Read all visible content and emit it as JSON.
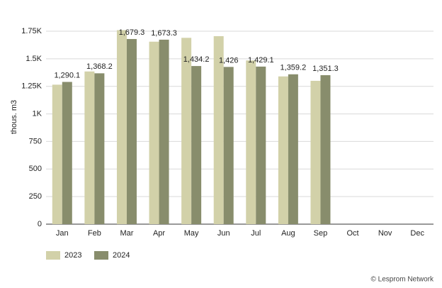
{
  "chart_data": {
    "type": "bar",
    "y_label": "thous. m3",
    "source": "© Lesprom Network",
    "categories": [
      "Jan",
      "Feb",
      "Mar",
      "Apr",
      "May",
      "Jun",
      "Jul",
      "Aug",
      "Sep",
      "Oct",
      "Nov",
      "Dec"
    ],
    "series": [
      {
        "name": "2023",
        "color": "#d2d1a9",
        "values": [
          1265,
          1385,
          1760,
          1655,
          1690,
          1705,
          1485,
          1340,
          1300,
          null,
          null,
          null
        ]
      },
      {
        "name": "2024",
        "color": "#888d6c",
        "values": [
          1290.1,
          1368.2,
          1679.3,
          1673.3,
          1434.2,
          1426,
          1429.1,
          1359.2,
          1351.3,
          null,
          null,
          null
        ],
        "value_labels": [
          "1,290.1",
          "1,368.2",
          "1,679.3",
          "1,673.3",
          "1,434.2",
          "1,426",
          "1,429.1",
          "1,359.2",
          "1,351.3",
          null,
          null,
          null
        ]
      }
    ],
    "ylim": [
      0,
      1750
    ],
    "yticks": [
      0,
      250,
      500,
      750,
      {
        "value": 1000,
        "label": "1K"
      },
      {
        "value": 1250,
        "label": "1.25K"
      },
      {
        "value": 1500,
        "label": "1.5K"
      },
      {
        "value": 1750,
        "label": "1.75K"
      }
    ],
    "grid": true,
    "legend": "bottom-left"
  }
}
